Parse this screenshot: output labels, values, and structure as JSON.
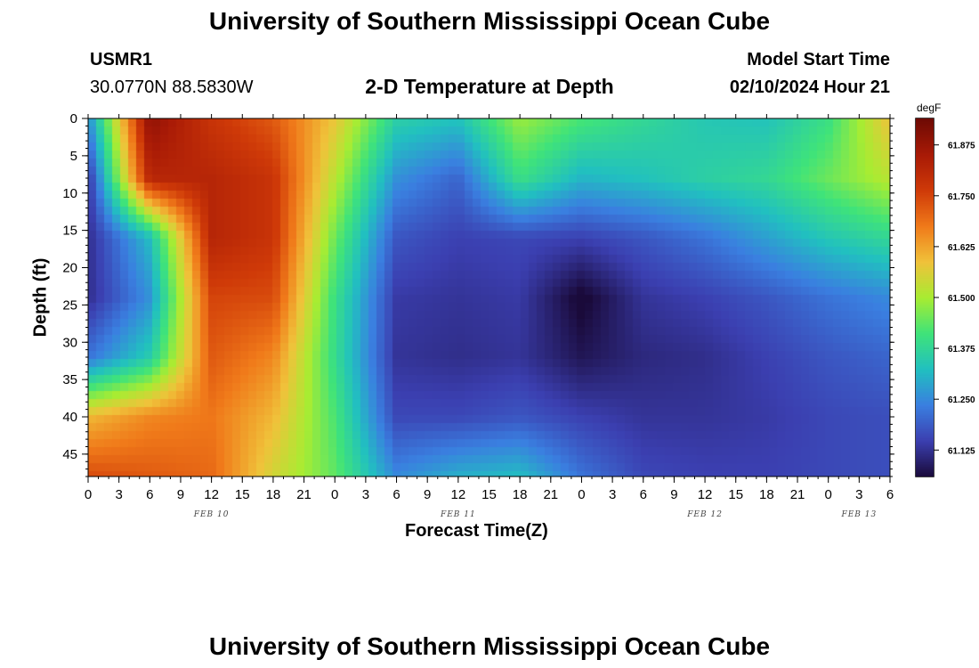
{
  "header": {
    "title": "University of Southern Mississippi Ocean Cube",
    "station": "USMR1",
    "location": "30.0770N  88.5830W",
    "subtitle": "2-D Temperature at Depth",
    "model_label": "Model Start Time",
    "model_time": "02/10/2024 Hour 21",
    "footer_title": "University of Southern Mississippi Ocean Cube"
  },
  "colors": {
    "scale": [
      "#1a0a3a",
      "#3b3fb0",
      "#3a7fe0",
      "#21c0c0",
      "#3fe37a",
      "#a8ec32",
      "#f0c23a",
      "#f07a1a",
      "#cf3a08",
      "#a81a06",
      "#6e0a04"
    ]
  },
  "chart_data": {
    "type": "heatmap",
    "xlabel": "Forecast Time(Z)",
    "ylabel": "Depth (ft)",
    "x_ticks": [
      "0",
      "3",
      "6",
      "9",
      "12",
      "15",
      "18",
      "21",
      "0",
      "3",
      "6",
      "9",
      "12",
      "15",
      "18",
      "21",
      "0",
      "3",
      "6",
      "9",
      "12",
      "15",
      "18",
      "21",
      "0",
      "3",
      "6"
    ],
    "date_labels": [
      {
        "label": "FEB 10",
        "hour": 12
      },
      {
        "label": "FEB 11",
        "hour": 36
      },
      {
        "label": "FEB 12",
        "hour": 60
      },
      {
        "label": "FEB 13",
        "hour": 75
      }
    ],
    "x_hours": [
      0,
      6,
      12,
      18,
      24,
      30,
      36,
      42,
      48,
      54,
      60,
      66,
      72,
      78
    ],
    "y_ticks": [
      0,
      5,
      10,
      15,
      20,
      25,
      30,
      35,
      40,
      45
    ],
    "ylim": [
      0,
      48
    ],
    "xlim": [
      0,
      78
    ],
    "depths": [
      0,
      8,
      16,
      24,
      32,
      40,
      48
    ],
    "temperature_degF": [
      [
        61.25,
        61.89,
        61.78,
        61.72,
        61.58,
        61.36,
        61.33,
        61.49,
        61.42,
        61.38,
        61.34,
        61.33,
        61.4,
        61.59
      ],
      [
        61.13,
        61.82,
        61.82,
        61.78,
        61.52,
        61.26,
        61.2,
        61.4,
        61.31,
        61.33,
        61.36,
        61.38,
        61.45,
        61.52
      ],
      [
        61.12,
        61.32,
        61.82,
        61.78,
        61.45,
        61.18,
        61.15,
        61.16,
        61.15,
        61.18,
        61.22,
        61.28,
        61.34,
        61.38
      ],
      [
        61.12,
        61.26,
        61.75,
        61.74,
        61.4,
        61.14,
        61.13,
        61.14,
        61.05,
        61.13,
        61.15,
        61.18,
        61.22,
        61.25
      ],
      [
        61.22,
        61.35,
        61.72,
        61.66,
        61.39,
        61.13,
        61.12,
        61.13,
        61.08,
        61.11,
        61.12,
        61.15,
        61.18,
        61.2
      ],
      [
        61.6,
        61.66,
        61.68,
        61.6,
        61.42,
        61.16,
        61.16,
        61.18,
        61.15,
        61.13,
        61.13,
        61.14,
        61.16,
        61.17
      ],
      [
        61.74,
        61.72,
        61.7,
        61.55,
        61.44,
        61.25,
        61.3,
        61.32,
        61.22,
        61.16,
        61.15,
        61.15,
        61.16,
        61.17
      ]
    ],
    "colorbar": {
      "unit": "degF",
      "ticks": [
        "61.875",
        "61.750",
        "61.625",
        "61.500",
        "61.375",
        "61.250",
        "61.125"
      ],
      "tick_values": [
        61.875,
        61.75,
        61.625,
        61.5,
        61.375,
        61.25,
        61.125
      ],
      "range": [
        61.06,
        61.94
      ]
    }
  }
}
